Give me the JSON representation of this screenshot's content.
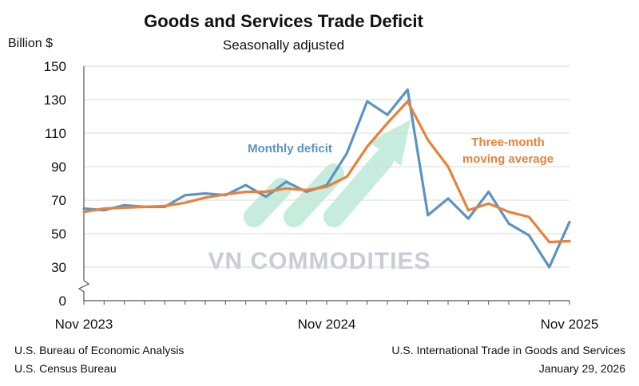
{
  "title": "Goods and Services Trade Deficit",
  "subtitle": "Seasonally adjusted",
  "unit_label": "Billion $",
  "source_left": [
    "U.S. Bureau of Economic Analysis",
    "U.S. Census Bureau"
  ],
  "source_right": [
    "U.S. International Trade in Goods and Services",
    "January 29, 2026"
  ],
  "watermark": "VN COMMODITIES",
  "colors": {
    "monthly": "#5b93c4",
    "average": "#e8823a",
    "watermark_arrow": "#5cc9a0",
    "watermark_text": "#c9ccd6"
  },
  "chart_data": {
    "type": "line",
    "title": "Goods and Services Trade Deficit",
    "subtitle": "Seasonally adjusted",
    "ylabel": "Billion $",
    "ylim": [
      0,
      150
    ],
    "y_ticks": [
      0,
      30,
      50,
      70,
      90,
      110,
      130,
      150
    ],
    "y_axis_break": true,
    "x": [
      "Nov 2023",
      "Dec 2023",
      "Jan 2024",
      "Feb 2024",
      "Mar 2024",
      "Apr 2024",
      "May 2024",
      "Jun 2024",
      "Jul 2024",
      "Aug 2024",
      "Sep 2024",
      "Oct 2024",
      "Nov 2024",
      "Dec 2024",
      "Jan 2025",
      "Feb 2025",
      "Mar 2025",
      "Apr 2025",
      "May 2025",
      "Jun 2025",
      "Jul 2025",
      "Aug 2025",
      "Sep 2025",
      "Oct 2025",
      "Nov 2025"
    ],
    "x_tick_labels": [
      "Nov 2023",
      "Nov 2024",
      "Nov 2025"
    ],
    "grid": "horizontal",
    "series": [
      {
        "name": "Monthly deficit",
        "values": [
          65,
          64,
          67,
          66,
          66,
          73,
          74,
          73,
          79,
          72,
          81,
          75,
          79,
          98,
          129,
          121,
          136,
          61,
          71,
          59,
          75,
          56,
          49,
          30,
          57
        ]
      },
      {
        "name": "Three-month moving average",
        "values": [
          63,
          65,
          65.5,
          66,
          66.5,
          68.5,
          71.5,
          73.5,
          75,
          75,
          77,
          76,
          78,
          84,
          102,
          116,
          129,
          106,
          90,
          64,
          68,
          63,
          60,
          45,
          45.5
        ]
      }
    ],
    "annotations": [
      {
        "series": 0,
        "text": "Monthly deficit"
      },
      {
        "series": 1,
        "text": "Three-month moving average",
        "lines": [
          "Three-month",
          "moving average"
        ]
      }
    ]
  }
}
